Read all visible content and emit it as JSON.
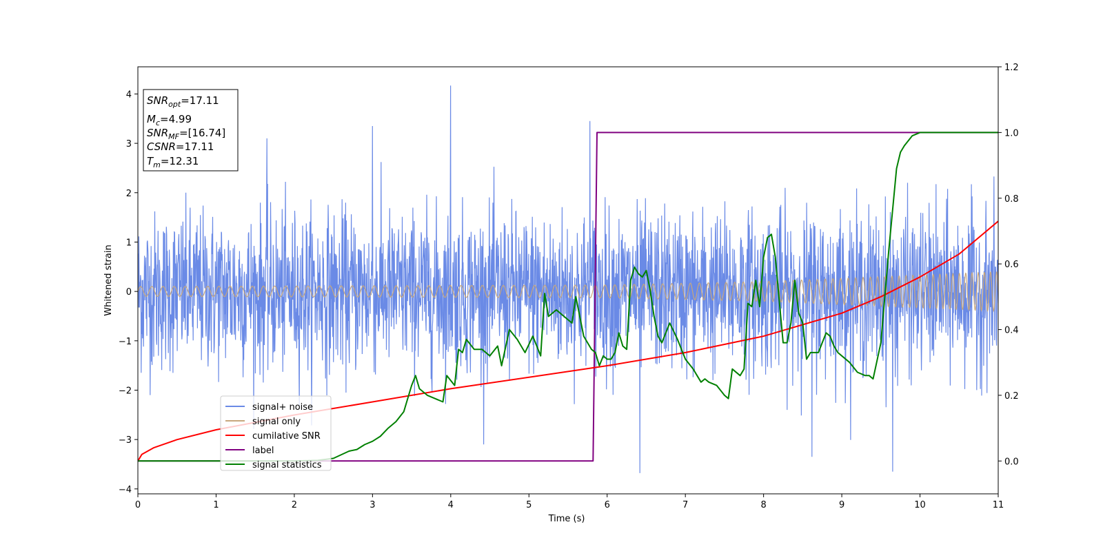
{
  "chart_data": {
    "type": "line",
    "xlabel": "Time (s)",
    "ylabel": "Whitened strain",
    "xlim": [
      0,
      11
    ],
    "ylim": [
      -4.1,
      4.55
    ],
    "y2lim": [
      -0.1,
      1.2
    ],
    "x_ticks": [
      "0",
      "1",
      "2",
      "3",
      "4",
      "5",
      "6",
      "7",
      "8",
      "9",
      "10",
      "11"
    ],
    "y_ticks": [
      "4",
      "3",
      "2",
      "1",
      "0",
      "−1",
      "−2",
      "−3",
      "−4"
    ],
    "y2_ticks": [
      "1.2",
      "1.0",
      "0.8",
      "0.6",
      "0.4",
      "0.2",
      "0.0"
    ],
    "grid": false,
    "legend_position": "lower-left",
    "info_box": {
      "snr_opt": {
        "sym": "SNR",
        "sub": "opt",
        "value": "=17.11"
      },
      "mc": {
        "sym": "M",
        "sub": "c",
        "value": "=4.99"
      },
      "snr_mf": {
        "sym": "SNR",
        "sub": "MF",
        "value": "=[16.74]"
      },
      "csnr": {
        "sym": "CSNR",
        "sub": "",
        "value": "=17.11"
      },
      "tm": {
        "sym": "T",
        "sub": "m",
        "value": "=12.31"
      }
    },
    "series": [
      {
        "name": "signal+ noise",
        "color": "#6a8ae6",
        "axis": "left",
        "kind": "noise",
        "envelope_sigma": 0.8,
        "notable_spikes": [
          [
            3.0,
            3.35
          ],
          [
            4.0,
            4.17
          ],
          [
            5.78,
            3.45
          ],
          [
            6.42,
            -3.68
          ],
          [
            9.65,
            -3.65
          ],
          [
            8.62,
            -3.35
          ],
          [
            1.65,
            3.1
          ]
        ]
      },
      {
        "name": "signal only",
        "color": "#c7a77d",
        "axis": "left",
        "kind": "chirp",
        "amplitude": [
          [
            0,
            0.1
          ],
          [
            6,
            0.13
          ],
          [
            8,
            0.2
          ],
          [
            9.5,
            0.3
          ],
          [
            11,
            0.4
          ]
        ]
      },
      {
        "name": "cumilative SNR",
        "color": "#ff0000",
        "axis": "right",
        "x": [
          0,
          0.05,
          0.2,
          0.5,
          1,
          2,
          3,
          4,
          5,
          6,
          7,
          8,
          9,
          9.5,
          10,
          10.5,
          11
        ],
        "y": [
          0.0,
          0.02,
          0.04,
          0.065,
          0.095,
          0.14,
          0.18,
          0.22,
          0.255,
          0.29,
          0.33,
          0.38,
          0.45,
          0.5,
          0.56,
          0.63,
          0.73
        ]
      },
      {
        "name": "label",
        "color": "#800080",
        "axis": "right",
        "x": [
          0,
          5.82,
          5.87,
          11
        ],
        "y": [
          0,
          0,
          1,
          1
        ]
      },
      {
        "name": "signal statistics",
        "color": "#008000",
        "axis": "right",
        "x": [
          0,
          0.5,
          1.0,
          1.5,
          2.0,
          2.3,
          2.5,
          2.7,
          2.8,
          2.9,
          3.0,
          3.1,
          3.2,
          3.3,
          3.4,
          3.5,
          3.55,
          3.6,
          3.7,
          3.8,
          3.9,
          3.95,
          4.05,
          4.1,
          4.15,
          4.2,
          4.3,
          4.4,
          4.5,
          4.6,
          4.65,
          4.75,
          4.85,
          4.95,
          5.05,
          5.15,
          5.2,
          5.25,
          5.35,
          5.45,
          5.55,
          5.6,
          5.7,
          5.8,
          5.85,
          5.9,
          5.95,
          6.0,
          6.05,
          6.1,
          6.15,
          6.2,
          6.25,
          6.3,
          6.35,
          6.4,
          6.45,
          6.5,
          6.55,
          6.6,
          6.65,
          6.7,
          6.8,
          6.9,
          6.95,
          7.0,
          7.1,
          7.2,
          7.25,
          7.3,
          7.4,
          7.5,
          7.55,
          7.6,
          7.7,
          7.75,
          7.8,
          7.85,
          7.9,
          7.95,
          8.0,
          8.05,
          8.1,
          8.15,
          8.2,
          8.25,
          8.3,
          8.35,
          8.4,
          8.45,
          8.5,
          8.55,
          8.6,
          8.7,
          8.8,
          8.85,
          8.9,
          8.95,
          9.0,
          9.1,
          9.2,
          9.3,
          9.35,
          9.4,
          9.5,
          9.6,
          9.7,
          9.75,
          9.8,
          9.9,
          10.0,
          10.2,
          10.5,
          11.0
        ],
        "y": [
          0.0,
          0.0,
          0.0,
          0.0,
          0.0,
          0.002,
          0.008,
          0.03,
          0.035,
          0.05,
          0.06,
          0.075,
          0.1,
          0.12,
          0.15,
          0.23,
          0.26,
          0.22,
          0.2,
          0.19,
          0.18,
          0.26,
          0.23,
          0.34,
          0.33,
          0.37,
          0.34,
          0.34,
          0.32,
          0.35,
          0.29,
          0.4,
          0.37,
          0.33,
          0.38,
          0.32,
          0.51,
          0.44,
          0.46,
          0.44,
          0.42,
          0.5,
          0.38,
          0.34,
          0.33,
          0.29,
          0.32,
          0.31,
          0.31,
          0.33,
          0.39,
          0.35,
          0.34,
          0.55,
          0.59,
          0.57,
          0.56,
          0.58,
          0.52,
          0.44,
          0.38,
          0.36,
          0.42,
          0.37,
          0.34,
          0.31,
          0.28,
          0.24,
          0.25,
          0.24,
          0.23,
          0.2,
          0.19,
          0.28,
          0.26,
          0.28,
          0.48,
          0.47,
          0.55,
          0.47,
          0.62,
          0.68,
          0.69,
          0.62,
          0.49,
          0.36,
          0.36,
          0.42,
          0.55,
          0.45,
          0.42,
          0.31,
          0.33,
          0.33,
          0.39,
          0.38,
          0.35,
          0.33,
          0.32,
          0.3,
          0.27,
          0.26,
          0.26,
          0.25,
          0.36,
          0.64,
          0.89,
          0.94,
          0.96,
          0.99,
          1.0,
          1.0,
          1.0,
          1.0
        ]
      }
    ]
  }
}
